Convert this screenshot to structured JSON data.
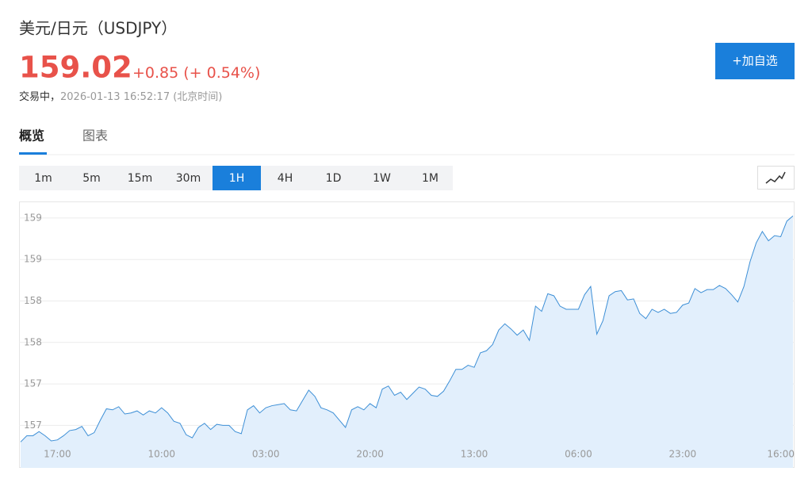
{
  "header": {
    "title": "美元/日元（USDJPY）",
    "price": "159.02",
    "change": "+0.85",
    "change_pct": "(+ 0.54%)",
    "status": "交易中，",
    "timestamp": "2026-01-13 16:52:17 (北京时间)"
  },
  "watch_button": "+加自选",
  "tabs": [
    "概览",
    "图表"
  ],
  "active_tab": 0,
  "intervals": [
    "1m",
    "5m",
    "15m",
    "30m",
    "1H",
    "4H",
    "1D",
    "1W",
    "1M"
  ],
  "active_interval": 4,
  "chart_data": {
    "type": "area",
    "color": "#3d8fd6",
    "fill": "#e2effc",
    "grid": true,
    "ylim": [
      156.59,
      159.16
    ],
    "yticks": [
      159,
      {
        "value": 158.6,
        "label": "159"
      },
      {
        "value": 158.2,
        "label": "158"
      },
      {
        "value": 157.8,
        "label": "158"
      },
      {
        "value": 157.4,
        "label": "157"
      },
      157
    ],
    "categories": [
      null,
      null,
      null,
      null,
      null,
      null,
      "17:00",
      null,
      null,
      null,
      null,
      null,
      null,
      null,
      null,
      null,
      null,
      null,
      null,
      null,
      null,
      null,
      null,
      "10:00",
      null,
      null,
      null,
      null,
      null,
      null,
      null,
      null,
      null,
      null,
      null,
      null,
      null,
      null,
      null,
      null,
      "03:00",
      null,
      null,
      null,
      null,
      null,
      null,
      null,
      null,
      null,
      null,
      null,
      null,
      null,
      null,
      null,
      null,
      "20:00",
      null,
      null,
      null,
      null,
      null,
      null,
      null,
      null,
      null,
      null,
      null,
      null,
      null,
      null,
      null,
      null,
      "13:00",
      null,
      null,
      null,
      null,
      null,
      null,
      null,
      null,
      null,
      null,
      null,
      null,
      null,
      null,
      null,
      null,
      "06:00",
      null,
      null,
      null,
      null,
      null,
      null,
      null,
      null,
      null,
      null,
      null,
      null,
      null,
      null,
      null,
      null,
      "23:00",
      null,
      null,
      null,
      null,
      null,
      null,
      null,
      null,
      null,
      null,
      null,
      null,
      null,
      null,
      null,
      null,
      "16:00",
      null
    ],
    "values": [
      156.84,
      156.9,
      156.9,
      156.94,
      156.9,
      156.85,
      156.86,
      156.9,
      156.95,
      156.96,
      156.99,
      156.9,
      156.93,
      157.05,
      157.16,
      157.15,
      157.18,
      157.11,
      157.12,
      157.14,
      157.1,
      157.14,
      157.12,
      157.17,
      157.12,
      157.04,
      157.02,
      156.91,
      156.88,
      156.98,
      157.02,
      156.96,
      157.01,
      157.0,
      157.0,
      156.94,
      156.92,
      157.15,
      157.19,
      157.12,
      157.17,
      157.19,
      157.2,
      157.21,
      157.15,
      157.14,
      157.24,
      157.34,
      157.28,
      157.17,
      157.15,
      157.12,
      157.05,
      156.98,
      157.15,
      157.18,
      157.15,
      157.21,
      157.17,
      157.35,
      157.38,
      157.29,
      157.32,
      157.25,
      157.31,
      157.37,
      157.35,
      157.29,
      157.28,
      157.33,
      157.43,
      157.54,
      157.54,
      157.58,
      157.56,
      157.7,
      157.72,
      157.78,
      157.92,
      157.98,
      157.93,
      157.87,
      157.92,
      157.82,
      158.15,
      158.1,
      158.27,
      158.25,
      158.15,
      158.12,
      158.12,
      158.12,
      158.26,
      158.34,
      157.88,
      158.01,
      158.25,
      158.29,
      158.3,
      158.21,
      158.22,
      158.08,
      158.03,
      158.12,
      158.09,
      158.12,
      158.08,
      158.09,
      158.16,
      158.18,
      158.32,
      158.28,
      158.31,
      158.31,
      158.35,
      158.32,
      158.26,
      158.19,
      158.34,
      158.58,
      158.76,
      158.87,
      158.78,
      158.83,
      158.82,
      158.97,
      159.02
    ]
  }
}
